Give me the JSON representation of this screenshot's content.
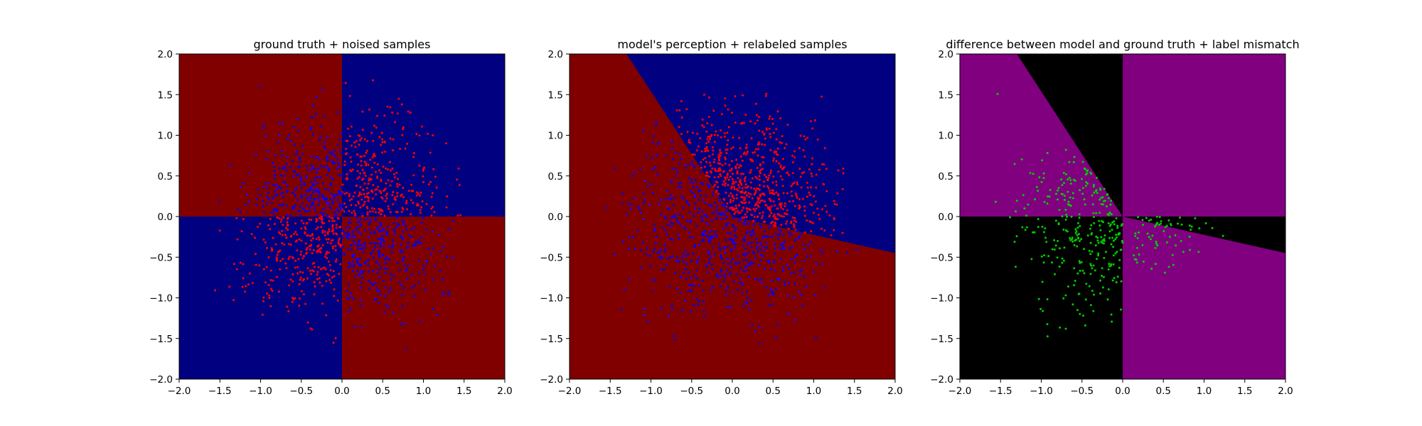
{
  "figure": {
    "background": "#ffffff"
  },
  "chart_data": [
    {
      "type": "scatter",
      "title": "ground truth + noised samples",
      "xlabel": "",
      "ylabel": "",
      "xlim": [
        -2.0,
        2.0
      ],
      "ylim": [
        -2.0,
        2.0
      ],
      "x_ticks": [
        "−2.0",
        "−1.5",
        "−1.0",
        "−0.5",
        "0.0",
        "0.5",
        "1.0",
        "1.5",
        "2.0"
      ],
      "y_ticks": [
        "−2.0",
        "−1.5",
        "−1.0",
        "−0.5",
        "0.0",
        "0.5",
        "1.0",
        "1.5",
        "2.0"
      ],
      "grid": false,
      "background_regions": "quadrant",
      "region_colors": {
        "x_neg_y_pos": "#800000",
        "x_pos_y_pos": "#000080",
        "x_neg_y_neg": "#000080",
        "x_pos_y_neg": "#800000"
      },
      "series": [
        {
          "color": "#ff0000",
          "marker_size": 2,
          "points": "pseudo-random",
          "region_rule": "xy_pos",
          "count": 600,
          "seed": 11
        },
        {
          "color": "#0000ff",
          "marker_size": 2,
          "points": "pseudo-random",
          "region_rule": "xy_neg",
          "count": 600,
          "seed": 23
        }
      ]
    },
    {
      "type": "scatter",
      "title": "model's perception + relabeled samples",
      "xlabel": "",
      "ylabel": "",
      "xlim": [
        -2.0,
        2.0
      ],
      "ylim": [
        -2.0,
        2.0
      ],
      "x_ticks": [
        "−2.0",
        "−1.5",
        "−1.0",
        "−0.5",
        "0.0",
        "0.5",
        "1.0",
        "1.5",
        "2.0"
      ],
      "y_ticks": [
        "−2.0",
        "−1.5",
        "−1.0",
        "−0.5",
        "0.0",
        "0.5",
        "1.0",
        "1.5",
        "2.0"
      ],
      "grid": false,
      "background_regions": "wedge",
      "boundary_lines": [
        {
          "from": [
            0.0,
            0.0
          ],
          "to": [
            -1.3,
            2.0
          ]
        },
        {
          "from": [
            0.0,
            0.0
          ],
          "to": [
            2.0,
            -0.45
          ]
        }
      ],
      "region_colors": {
        "inside": "#000080",
        "outside": "#800000"
      },
      "series": [
        {
          "color": "#ff0000",
          "marker_size": 2,
          "points": "pseudo-random",
          "region_rule": "model_pos",
          "count": 600,
          "seed": 37
        },
        {
          "color": "#0000ff",
          "marker_size": 2,
          "points": "pseudo-random",
          "region_rule": "model_neg",
          "count": 600,
          "seed": 41
        }
      ]
    },
    {
      "type": "scatter",
      "title": "difference between model and ground truth + label mismatch",
      "xlabel": "",
      "ylabel": "",
      "xlim": [
        -2.0,
        2.0
      ],
      "ylim": [
        -2.0,
        2.0
      ],
      "x_ticks": [
        "−2.0",
        "−1.5",
        "−1.0",
        "−0.5",
        "0.0",
        "0.5",
        "1.0",
        "1.5",
        "2.0"
      ],
      "y_ticks": [
        "−2.0",
        "−1.5",
        "−1.0",
        "−0.5",
        "0.0",
        "0.5",
        "1.0",
        "1.5",
        "2.0"
      ],
      "grid": false,
      "background_regions": "difference",
      "region_colors": {
        "agree": "#800080",
        "disagree": "#000000"
      },
      "series": [
        {
          "color": "#00cc00",
          "marker_size": 2,
          "points": "pseudo-random",
          "region_rule": "mismatch",
          "count": 380,
          "seed": 53
        }
      ]
    }
  ]
}
